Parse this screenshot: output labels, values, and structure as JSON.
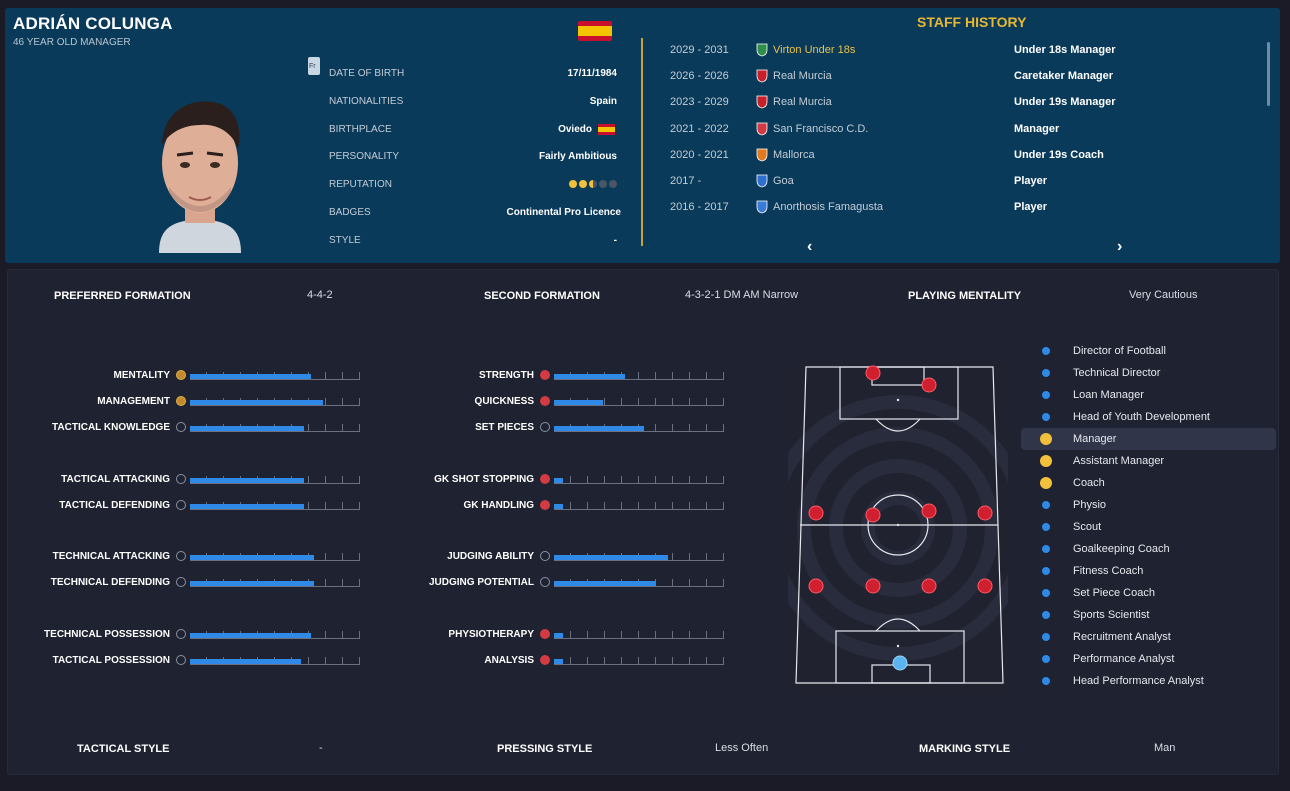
{
  "header": {
    "name": "ADRIÁN COLUNGA",
    "subtitle": "46 YEAR OLD MANAGER",
    "small_button": "Fr"
  },
  "info": [
    {
      "label": "DATE OF BIRTH",
      "value": "17/11/1984"
    },
    {
      "label": "NATIONALITIES",
      "value": "Spain"
    },
    {
      "label": "BIRTHPLACE",
      "value": "Oviedo"
    },
    {
      "label": "PERSONALITY",
      "value": "Fairly Ambitious"
    },
    {
      "label": "REPUTATION",
      "value": ""
    },
    {
      "label": "BADGES",
      "value": "Continental Pro Licence"
    },
    {
      "label": "STYLE",
      "value": "-"
    }
  ],
  "reputation_stars": 2.5,
  "reputation_max": 5,
  "staff_history": {
    "title": "STAFF HISTORY",
    "rows": [
      {
        "years": "2029 - 2031",
        "club": "Virton Under 18s",
        "role": "Under 18s Manager",
        "highlight": true,
        "crest_color": "#2f8f4a"
      },
      {
        "years": "2026 - 2026",
        "club": "Real Murcia",
        "role": "Caretaker Manager",
        "crest_color": "#c8202a"
      },
      {
        "years": "2023 - 2029",
        "club": "Real Murcia",
        "role": "Under 19s Manager",
        "crest_color": "#c8202a"
      },
      {
        "years": "2021 - 2022",
        "club": "San Francisco C.D.",
        "role": "Manager",
        "crest_color": "#d23a44"
      },
      {
        "years": "2020 - 2021",
        "club": "Mallorca",
        "role": "Under 19s Coach",
        "crest_color": "#e07a20"
      },
      {
        "years": "2017 -",
        "club": "Goa",
        "role": "Player",
        "crest_color": "#2f6fd0"
      },
      {
        "years": "2016 - 2017",
        "club": "Anorthosis Famagusta",
        "role": "Player",
        "crest_color": "#3a7bd5"
      }
    ],
    "prev_arrow": "‹",
    "next_arrow": "›"
  },
  "headers": {
    "preferred_formation_label": "PREFERRED FORMATION",
    "preferred_formation": "4-4-2",
    "second_formation_label": "SECOND FORMATION",
    "second_formation": "4-3-2-1 DM AM Narrow",
    "playing_mentality_label": "PLAYING MENTALITY",
    "playing_mentality": "Very Cautious",
    "tactical_style_label": "TACTICAL STYLE",
    "tactical_style": "-",
    "pressing_style_label": "PRESSING STYLE",
    "pressing_style": "Less Often",
    "marking_style_label": "MARKING STYLE",
    "marking_style": "Man"
  },
  "attributes_left": [
    {
      "label": "MENTALITY",
      "value": 0.71,
      "icon": "gold"
    },
    {
      "label": "MANAGEMENT",
      "value": 0.78,
      "icon": "gold"
    },
    {
      "label": "TACTICAL KNOWLEDGE",
      "value": 0.67,
      "icon": "gray"
    },
    {
      "label": "TACTICAL ATTACKING",
      "value": 0.67,
      "icon": "gray"
    },
    {
      "label": "TACTICAL DEFENDING",
      "value": 0.67,
      "icon": "gray"
    },
    {
      "label": "TECHNICAL ATTACKING",
      "value": 0.73,
      "icon": "gray"
    },
    {
      "label": "TECHNICAL DEFENDING",
      "value": 0.73,
      "icon": "gray"
    },
    {
      "label": "TECHNICAL POSSESSION",
      "value": 0.71,
      "icon": "gray"
    },
    {
      "label": "TACTICAL POSSESSION",
      "value": 0.65,
      "icon": "gray"
    }
  ],
  "attributes_right": [
    {
      "label": "STRENGTH",
      "value": 0.42,
      "icon": "red"
    },
    {
      "label": "QUICKNESS",
      "value": 0.29,
      "icon": "red"
    },
    {
      "label": "SET PIECES",
      "value": 0.53,
      "icon": "gray"
    },
    {
      "label": "GK SHOT STOPPING",
      "value": 0.05,
      "icon": "red"
    },
    {
      "label": "GK HANDLING",
      "value": 0.05,
      "icon": "red"
    },
    {
      "label": "JUDGING ABILITY",
      "value": 0.67,
      "icon": "gray"
    },
    {
      "label": "JUDGING POTENTIAL",
      "value": 0.6,
      "icon": "gray"
    },
    {
      "label": "PHYSIOTHERAPY",
      "value": 0.05,
      "icon": "red"
    },
    {
      "label": "ANALYSIS",
      "value": 0.05,
      "icon": "red"
    }
  ],
  "roles": [
    {
      "label": "Director of Football",
      "color": "#2e8ae6"
    },
    {
      "label": "Technical Director",
      "color": "#2e8ae6"
    },
    {
      "label": "Loan Manager",
      "color": "#2e8ae6"
    },
    {
      "label": "Head of Youth Development",
      "color": "#2e8ae6"
    },
    {
      "label": "Manager",
      "color": "#f2c03a",
      "selected": true
    },
    {
      "label": "Assistant Manager",
      "color": "#f2c03a"
    },
    {
      "label": "Coach",
      "color": "#f2c03a"
    },
    {
      "label": "Physio",
      "color": "#2e8ae6"
    },
    {
      "label": "Scout",
      "color": "#2e8ae6"
    },
    {
      "label": "Goalkeeping Coach",
      "color": "#2e8ae6"
    },
    {
      "label": "Fitness Coach",
      "color": "#2e8ae6"
    },
    {
      "label": "Set Piece Coach",
      "color": "#2e8ae6"
    },
    {
      "label": "Sports Scientist",
      "color": "#2e8ae6"
    },
    {
      "label": "Recruitment Analyst",
      "color": "#2e8ae6"
    },
    {
      "label": "Performance Analyst",
      "color": "#2e8ae6"
    },
    {
      "label": "Head Performance Analyst",
      "color": "#2e8ae6"
    }
  ],
  "colors": {
    "accent": "#2e8ae6",
    "gold": "#e8b830",
    "player": "#d02030",
    "keeper": "#5ab4f0"
  }
}
